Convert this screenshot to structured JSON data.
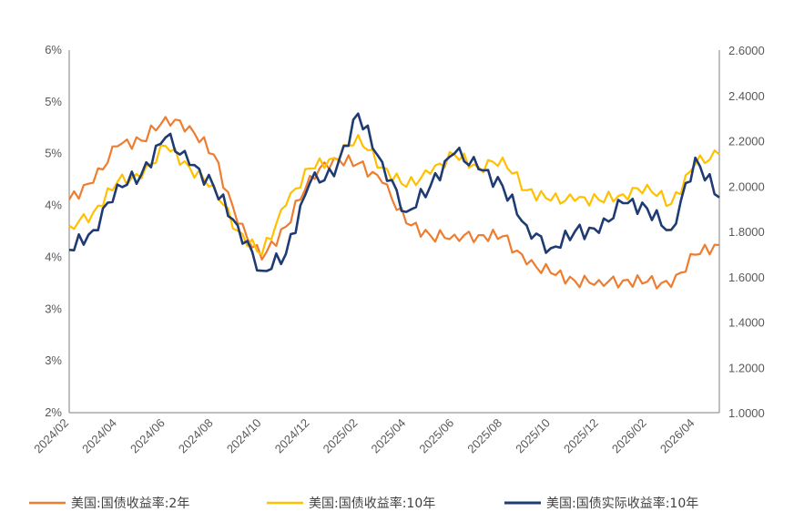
{
  "chart_data": {
    "type": "line",
    "x_tick_labels": [
      "2024/02",
      "2024/04",
      "2024/06",
      "2024/08",
      "2024/10",
      "2024/12",
      "2025/02",
      "2025/04",
      "2025/06",
      "2025/08",
      "2025/10",
      "2025/12",
      "2026/02",
      "2026/04"
    ],
    "y_left_tick_labels": [
      "6%",
      "5%",
      "5%",
      "4%",
      "4%",
      "3%",
      "3%",
      "2%"
    ],
    "y_right_tick_labels": [
      "2.6000",
      "2.4000",
      "2.2000",
      "2.0000",
      "1.8000",
      "1.6000",
      "1.4000",
      "1.2000",
      "1.0000"
    ],
    "y_left_range": [
      2.0,
      6.0
    ],
    "y_right_range": [
      1.0,
      2.6
    ],
    "x_range": [
      "2024-02",
      "2026-05"
    ],
    "grid": false,
    "legend_position": "bottom",
    "series": [
      {
        "name": "美国:国债收益率:2年",
        "axis": "left",
        "color": "#ED7D31",
        "points": [
          [
            "2024-02",
            4.35
          ],
          [
            "2024-03",
            4.55
          ],
          [
            "2024-04",
            4.95
          ],
          [
            "2024-05",
            5.0
          ],
          [
            "2024-06",
            5.25
          ],
          [
            "2024-07",
            5.15
          ],
          [
            "2024-08",
            4.85
          ],
          [
            "2024-09",
            4.1
          ],
          [
            "2024-10",
            3.7
          ],
          [
            "2024-11",
            4.05
          ],
          [
            "2024-12",
            4.6
          ],
          [
            "2025-01",
            4.8
          ],
          [
            "2025-02",
            4.75
          ],
          [
            "2025-03",
            4.55
          ],
          [
            "2025-04",
            4.1
          ],
          [
            "2025-05",
            3.95
          ],
          [
            "2025-06",
            3.95
          ],
          [
            "2025-07",
            3.95
          ],
          [
            "2025-08",
            3.95
          ],
          [
            "2025-09",
            3.65
          ],
          [
            "2025-10",
            3.55
          ],
          [
            "2025-11",
            3.45
          ],
          [
            "2025-12",
            3.45
          ],
          [
            "2026-01",
            3.45
          ],
          [
            "2026-02",
            3.45
          ],
          [
            "2026-03",
            3.4
          ],
          [
            "2026-04",
            3.75
          ],
          [
            "2026-05",
            3.85
          ]
        ]
      },
      {
        "name": "美国:国债收益率:10年",
        "axis": "left",
        "color": "#FFC000",
        "points": [
          [
            "2024-02",
            4.05
          ],
          [
            "2024-03",
            4.2
          ],
          [
            "2024-04",
            4.55
          ],
          [
            "2024-05",
            4.6
          ],
          [
            "2024-06",
            4.95
          ],
          [
            "2024-07",
            4.7
          ],
          [
            "2024-08",
            4.5
          ],
          [
            "2024-09",
            4.0
          ],
          [
            "2024-10",
            3.75
          ],
          [
            "2024-11",
            4.3
          ],
          [
            "2024-12",
            4.7
          ],
          [
            "2025-01",
            4.8
          ],
          [
            "2025-02",
            5.05
          ],
          [
            "2025-03",
            4.7
          ],
          [
            "2025-04",
            4.5
          ],
          [
            "2025-05",
            4.65
          ],
          [
            "2025-06",
            4.85
          ],
          [
            "2025-07",
            4.7
          ],
          [
            "2025-08",
            4.8
          ],
          [
            "2025-09",
            4.45
          ],
          [
            "2025-10",
            4.35
          ],
          [
            "2025-11",
            4.35
          ],
          [
            "2025-12",
            4.35
          ],
          [
            "2026-01",
            4.4
          ],
          [
            "2026-02",
            4.5
          ],
          [
            "2026-03",
            4.3
          ],
          [
            "2026-04",
            4.75
          ],
          [
            "2026-05",
            4.85
          ]
        ]
      },
      {
        "name": "美国:国债实际收益率:10年",
        "axis": "right",
        "color": "#1F3B73",
        "points": [
          [
            "2024-02",
            1.72
          ],
          [
            "2024-03",
            1.8
          ],
          [
            "2024-04",
            2.0
          ],
          [
            "2024-05",
            2.05
          ],
          [
            "2024-06",
            2.22
          ],
          [
            "2024-07",
            2.1
          ],
          [
            "2024-08",
            2.0
          ],
          [
            "2024-09",
            1.82
          ],
          [
            "2024-10",
            1.62
          ],
          [
            "2024-11",
            1.7
          ],
          [
            "2024-12",
            2.02
          ],
          [
            "2025-01",
            2.05
          ],
          [
            "2025-02",
            2.32
          ],
          [
            "2025-03",
            2.1
          ],
          [
            "2025-04",
            1.88
          ],
          [
            "2025-05",
            2.0
          ],
          [
            "2025-06",
            2.15
          ],
          [
            "2025-07",
            2.08
          ],
          [
            "2025-08",
            2.0
          ],
          [
            "2025-09",
            1.82
          ],
          [
            "2025-10",
            1.72
          ],
          [
            "2025-11",
            1.8
          ],
          [
            "2025-12",
            1.8
          ],
          [
            "2026-01",
            1.93
          ],
          [
            "2026-02",
            1.9
          ],
          [
            "2026-03",
            1.8
          ],
          [
            "2026-04",
            2.12
          ],
          [
            "2026-05",
            1.95
          ]
        ]
      }
    ]
  }
}
